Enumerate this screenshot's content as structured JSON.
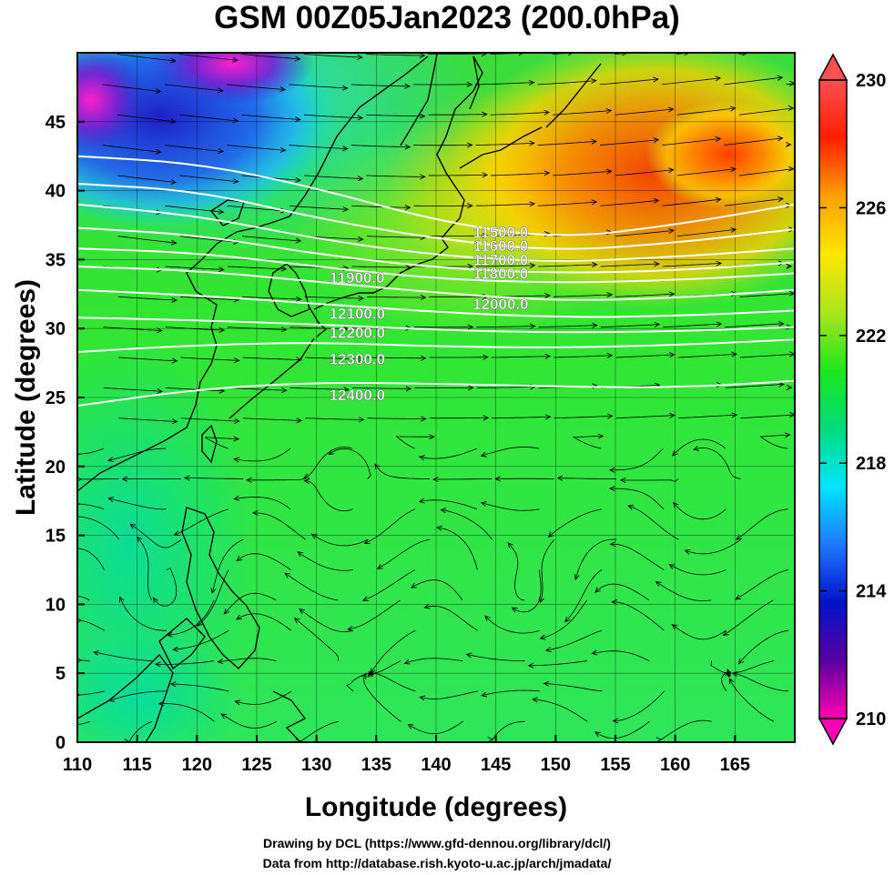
{
  "title": "GSM 00Z05Jan2023 (200.0hPa)",
  "xlabel": "Longitude (degrees)",
  "ylabel": "Latitude  (degrees)",
  "credit_line1": "Drawing by DCL (https://www.gfd-dennou.org/library/dcl/)",
  "credit_line2": "Data from http://database.rish.kyoto-u.ac.jp/arch/jmadata/",
  "chart_data": {
    "type": "heatmap",
    "xlim": [
      110,
      170
    ],
    "ylim": [
      0,
      50
    ],
    "x_ticks": [
      "110",
      "115",
      "120",
      "125",
      "130",
      "135",
      "140",
      "145",
      "150",
      "155",
      "160",
      "165"
    ],
    "y_ticks": [
      "0",
      "5",
      "10",
      "15",
      "20",
      "25",
      "30",
      "35",
      "40",
      "45"
    ],
    "colorbar": {
      "range": [
        210,
        230
      ],
      "ticks": [
        "210",
        "214",
        "218",
        "222",
        "226",
        "230"
      ],
      "colors": [
        "#ff00b4",
        "#5a00a0",
        "#0014c8",
        "#1e78ff",
        "#00e6ff",
        "#00dc78",
        "#1ee61e",
        "#aae61e",
        "#ffe600",
        "#ffa000",
        "#ff1e00",
        "#ff5050"
      ]
    },
    "contours": [
      {
        "label": "11500.0",
        "lon": [
          110,
          120,
          130,
          140,
          150,
          160,
          170
        ],
        "lat": [
          42.5,
          42.0,
          40.2,
          37.8,
          36.5,
          37.5,
          39.0
        ]
      },
      {
        "label": "11600.0",
        "lon": [
          110,
          120,
          130,
          140,
          150,
          160,
          170
        ],
        "lat": [
          40.5,
          40.0,
          38.0,
          36.5,
          35.6,
          36.2,
          37.2
        ]
      },
      {
        "label": "11700.0",
        "lon": [
          110,
          120,
          130,
          140,
          150,
          160,
          170
        ],
        "lat": [
          39.0,
          38.2,
          36.5,
          35.3,
          34.8,
          35.2,
          35.8
        ]
      },
      {
        "label": "11800.0",
        "lon": [
          110,
          120,
          130,
          140,
          150,
          160,
          170
        ],
        "lat": [
          37.3,
          36.8,
          35.4,
          34.4,
          34.0,
          34.2,
          34.8
        ]
      },
      {
        "label": "11900.0",
        "lon": [
          110,
          120,
          130,
          140,
          150,
          160,
          170
        ],
        "lat": [
          35.8,
          35.5,
          34.5,
          33.6,
          33.3,
          33.5,
          34.0
        ]
      },
      {
        "label": "12000.0",
        "lon": [
          110,
          120,
          130,
          140,
          150,
          160,
          170
        ],
        "lat": [
          34.5,
          34.2,
          33.4,
          32.6,
          32.0,
          32.2,
          32.8
        ]
      },
      {
        "label": "12100.0",
        "lon": [
          110,
          120,
          130,
          140,
          150,
          160,
          170
        ],
        "lat": [
          32.8,
          32.4,
          31.8,
          31.2,
          30.8,
          30.9,
          31.3
        ]
      },
      {
        "label": "12200.0",
        "lon": [
          110,
          120,
          130,
          140,
          150,
          160,
          170
        ],
        "lat": [
          30.8,
          30.6,
          30.3,
          29.9,
          29.7,
          29.8,
          30.1
        ]
      },
      {
        "label": "12300.0",
        "lon": [
          110,
          120,
          130,
          140,
          150,
          160,
          170
        ],
        "lat": [
          28.3,
          28.8,
          29.0,
          28.7,
          28.6,
          28.8,
          29.2
        ]
      },
      {
        "label": "12400.0",
        "lon": [
          110,
          120,
          130,
          140,
          150,
          160,
          170
        ],
        "lat": [
          24.4,
          25.6,
          26.1,
          26.0,
          25.8,
          25.7,
          26.2
        ]
      }
    ],
    "contour_labels": [
      {
        "text": "11500.0",
        "lon": 145.4,
        "lat": 37.0
      },
      {
        "text": "11600.0",
        "lon": 145.4,
        "lat": 36.0
      },
      {
        "text": "11700.0",
        "lon": 145.4,
        "lat": 35.0
      },
      {
        "text": "11800.0",
        "lon": 145.4,
        "lat": 34.0
      },
      {
        "text": "11900.0",
        "lon": 133.4,
        "lat": 33.7
      },
      {
        "text": "12000.0",
        "lon": 145.4,
        "lat": 31.8
      },
      {
        "text": "12100.0",
        "lon": 133.4,
        "lat": 31.1
      },
      {
        "text": "12200.0",
        "lon": 133.4,
        "lat": 29.7
      },
      {
        "text": "12300.0",
        "lon": 133.4,
        "lat": 27.8
      },
      {
        "text": "12400.0",
        "lon": 133.4,
        "lat": 25.2
      }
    ]
  }
}
